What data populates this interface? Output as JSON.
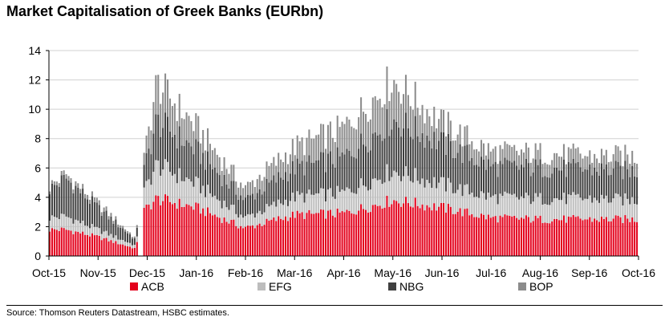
{
  "chart_data": {
    "type": "bar",
    "stacked": true,
    "title": "Market Capitalisation of Greek Banks (EURbn)",
    "xlabel": "",
    "ylabel": "",
    "ylim": [
      0,
      14
    ],
    "yticks": [
      "0",
      "2",
      "4",
      "6",
      "8",
      "10",
      "12",
      "14"
    ],
    "xticks": [
      "Oct-15",
      "Nov-15",
      "Dec-15",
      "Jan-16",
      "Feb-16",
      "Mar-16",
      "Apr-16",
      "May-16",
      "Jun-16",
      "Jul-16",
      "Aug-16",
      "Sep-16",
      "Oct-16"
    ],
    "grid": true,
    "legend_position": "bottom",
    "series": [
      {
        "name": "ACB",
        "color": "#e3001b"
      },
      {
        "name": "EFG",
        "color": "#bdbdbd"
      },
      {
        "name": "NBG",
        "color": "#404040"
      },
      {
        "name": "BOP",
        "color": "#8c8c8c"
      }
    ],
    "anchors": [
      {
        "date": "Oct-15",
        "values": [
          1.8,
          0.8,
          1.9,
          0.2
        ]
      },
      {
        "date": "mid Oct-15",
        "values": [
          1.8,
          0.9,
          2.6,
          0.3
        ]
      },
      {
        "date": "Nov-15",
        "values": [
          1.3,
          0.5,
          1.5,
          0.3
        ]
      },
      {
        "date": "end Nov-15",
        "values": [
          0.5,
          0.2,
          0.4,
          0.1
        ]
      },
      {
        "date": "Dec-15 (recap)",
        "values": [
          3.0,
          1.2,
          1.3,
          0.6
        ]
      },
      {
        "date": "mid Dec-15",
        "values": [
          3.9,
          2.3,
          3.0,
          2.6
        ]
      },
      {
        "date": "Jan-16",
        "values": [
          3.3,
          1.6,
          2.3,
          1.6
        ]
      },
      {
        "date": "Feb-16",
        "values": [
          1.9,
          0.7,
          1.2,
          0.8
        ]
      },
      {
        "date": "Mar-16",
        "values": [
          2.8,
          1.2,
          2.0,
          1.4
        ]
      },
      {
        "date": "Apr-16",
        "values": [
          2.9,
          1.4,
          2.4,
          2.0
        ]
      },
      {
        "date": "May-16",
        "values": [
          3.8,
          2.0,
          3.5,
          2.7
        ]
      },
      {
        "date": "Jun-16",
        "values": [
          3.3,
          1.6,
          2.8,
          1.4
        ]
      },
      {
        "date": "Jul-16",
        "values": [
          2.6,
          1.4,
          2.1,
          1.0
        ]
      },
      {
        "date": "Aug-16",
        "values": [
          2.5,
          1.4,
          2.1,
          1.0
        ]
      },
      {
        "date": "Sep-16",
        "values": [
          2.5,
          1.4,
          2.0,
          0.9
        ]
      },
      {
        "date": "Oct-16",
        "values": [
          2.5,
          1.3,
          2.0,
          1.0
        ]
      }
    ],
    "source": "Source: Thomson Reuters Datastream, HSBC estimates."
  }
}
